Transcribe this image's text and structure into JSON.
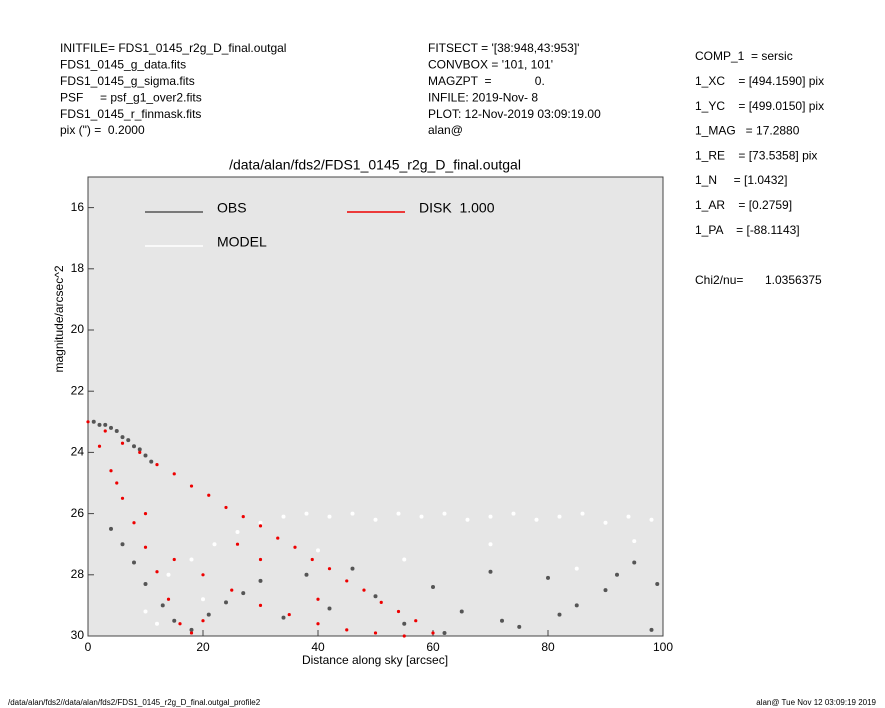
{
  "header": {
    "left": [
      "INITFILE= FDS1_0145_r2g_D_final.outgal",
      "FDS1_0145_g_data.fits",
      "FDS1_0145_g_sigma.fits",
      "PSF     = psf_g1_over2.fits",
      "FDS1_0145_r_finmask.fits",
      "pix (\") =  0.2000"
    ],
    "middle": [
      "FITSECT = '[38:948,43:953]'",
      "CONVBOX = '101, 101'",
      "MAGZPT  =             0.",
      "INFILE: 2019-Nov- 8",
      "PLOT: 12-Nov-2019 03:09:19.00",
      "alan@"
    ],
    "right": [
      "COMP_1  = sersic",
      "1_XC    = [494.1590] pix",
      "1_YC    = [499.0150] pix",
      "1_MAG   = 17.2880",
      "1_RE    = [73.5358] pix",
      "1_N     = [1.0432]",
      "1_AR    = [0.2759]",
      "1_PA    = [-88.1143]"
    ],
    "chi2_label": "Chi2/nu=",
    "chi2_value": "1.0356375"
  },
  "footer": {
    "left": "/data/alan/fds2//data/alan/fds2/FDS1_0145_r2g_D_final.outgal_profile2",
    "right": "alan@  Tue Nov 12 03:09:19 2019"
  },
  "chart_data": {
    "type": "scatter",
    "title": "/data/alan/fds2/FDS1_0145_r2g_D_final.outgal",
    "x_label": "Distance along sky [arcsec]",
    "y_label": "magnitude/arcsec^2",
    "xlim": [
      0,
      100
    ],
    "xticks": [
      0,
      20,
      40,
      60,
      80,
      100
    ],
    "ylim": [
      30,
      15
    ],
    "yticks": [
      16,
      18,
      20,
      22,
      24,
      26,
      28,
      30
    ],
    "series": [
      {
        "name": "OBS",
        "color": "#555555",
        "x": [
          1,
          2,
          3,
          4,
          5,
          6,
          7,
          8,
          9,
          10,
          11,
          4,
          6,
          8,
          10,
          13,
          15,
          18,
          21,
          24,
          27,
          30,
          34,
          38,
          42,
          46,
          50,
          55,
          60,
          65,
          70,
          75,
          80,
          85,
          90,
          95,
          99,
          62,
          72,
          82,
          92,
          98
        ],
        "values": [
          23.0,
          23.1,
          23.1,
          23.2,
          23.3,
          23.5,
          23.6,
          23.8,
          23.9,
          24.1,
          24.3,
          26.5,
          27.0,
          27.6,
          28.3,
          29.0,
          29.5,
          29.8,
          29.3,
          28.9,
          28.6,
          28.2,
          29.4,
          28.0,
          29.1,
          27.8,
          28.7,
          29.6,
          28.4,
          29.2,
          27.9,
          29.7,
          28.1,
          29.0,
          28.5,
          27.6,
          28.3,
          29.9,
          29.5,
          29.3,
          28.0,
          29.8
        ]
      },
      {
        "name": "MODEL",
        "color": "#ffffff",
        "x": [
          10,
          14,
          18,
          22,
          26,
          30,
          34,
          38,
          42,
          46,
          50,
          54,
          58,
          62,
          66,
          70,
          74,
          78,
          82,
          86,
          90,
          94,
          98,
          40,
          55,
          70,
          85,
          95,
          12,
          20
        ],
        "values": [
          29.2,
          28.0,
          27.5,
          27.0,
          26.6,
          26.3,
          26.1,
          26.0,
          26.1,
          26.0,
          26.2,
          26.0,
          26.1,
          26.0,
          26.2,
          26.1,
          26.0,
          26.2,
          26.1,
          26.0,
          26.3,
          26.1,
          26.2,
          27.2,
          27.5,
          27.0,
          27.8,
          26.9,
          29.6,
          28.8
        ]
      },
      {
        "name": "DISK  1.000",
        "color": "#ee0000",
        "x": [
          0,
          2,
          4,
          6,
          8,
          10,
          12,
          14,
          16,
          3,
          6,
          9,
          12,
          15,
          18,
          21,
          24,
          27,
          30,
          33,
          36,
          39,
          42,
          45,
          48,
          51,
          54,
          57,
          60,
          5,
          10,
          15,
          20,
          25,
          30,
          35,
          40,
          45,
          50,
          55,
          20,
          30,
          40,
          18,
          26
        ],
        "values": [
          23.0,
          23.8,
          24.6,
          25.5,
          26.3,
          27.1,
          27.9,
          28.8,
          29.6,
          23.3,
          23.7,
          24.0,
          24.4,
          24.7,
          25.1,
          25.4,
          25.8,
          26.1,
          26.4,
          26.8,
          27.1,
          27.5,
          27.8,
          28.2,
          28.5,
          28.9,
          29.2,
          29.5,
          29.9,
          25.0,
          26.0,
          27.5,
          28.0,
          28.5,
          29.0,
          29.3,
          29.6,
          29.8,
          29.9,
          30.0,
          29.5,
          27.5,
          28.8,
          29.9,
          27.0
        ]
      }
    ]
  }
}
